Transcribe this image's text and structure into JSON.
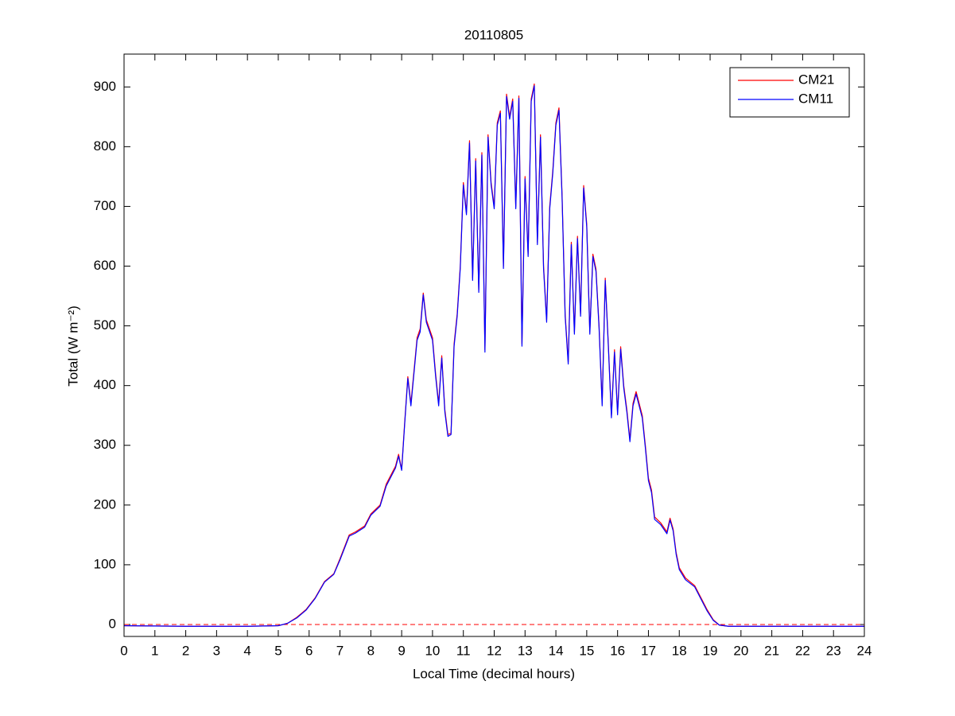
{
  "chart_data": {
    "type": "line",
    "title": "20110805",
    "xlabel": "Local Time (decimal hours)",
    "ylabel": "Total (W m⁻²)",
    "x": [
      0,
      2,
      4,
      5,
      5.3,
      5.6,
      5.9,
      6.2,
      6.5,
      6.8,
      7.0,
      7.3,
      7.5,
      7.8,
      8.0,
      8.3,
      8.5,
      8.8,
      8.9,
      9.0,
      9.1,
      9.2,
      9.3,
      9.5,
      9.6,
      9.7,
      9.8,
      10.0,
      10.1,
      10.2,
      10.3,
      10.4,
      10.5,
      10.6,
      10.7,
      10.8,
      10.9,
      11.0,
      11.1,
      11.2,
      11.3,
      11.4,
      11.5,
      11.6,
      11.7,
      11.8,
      11.9,
      12.0,
      12.1,
      12.2,
      12.3,
      12.4,
      12.5,
      12.6,
      12.7,
      12.8,
      12.9,
      13.0,
      13.1,
      13.2,
      13.3,
      13.4,
      13.5,
      13.6,
      13.7,
      13.8,
      13.9,
      14.0,
      14.1,
      14.2,
      14.3,
      14.4,
      14.5,
      14.6,
      14.7,
      14.8,
      14.9,
      15.0,
      15.1,
      15.2,
      15.3,
      15.4,
      15.5,
      15.6,
      15.7,
      15.8,
      15.9,
      16.0,
      16.1,
      16.2,
      16.3,
      16.4,
      16.5,
      16.6,
      16.7,
      16.8,
      16.9,
      17.0,
      17.1,
      17.2,
      17.4,
      17.6,
      17.7,
      17.8,
      17.9,
      18.0,
      18.2,
      18.5,
      18.7,
      18.9,
      19.1,
      19.3,
      19.6,
      21,
      24
    ],
    "series": [
      {
        "name": "CM21",
        "color": "#ff0000",
        "values": [
          -2,
          -3,
          -3,
          -2,
          2,
          12,
          25,
          45,
          72,
          85,
          110,
          150,
          155,
          165,
          185,
          200,
          235,
          265,
          285,
          260,
          340,
          415,
          370,
          480,
          495,
          555,
          510,
          480,
          420,
          370,
          450,
          360,
          318,
          320,
          470,
          520,
          600,
          740,
          690,
          810,
          580,
          780,
          560,
          790,
          460,
          820,
          740,
          700,
          840,
          860,
          600,
          888,
          850,
          880,
          700,
          885,
          470,
          750,
          620,
          880,
          905,
          640,
          820,
          600,
          510,
          700,
          760,
          840,
          865,
          720,
          520,
          440,
          640,
          490,
          650,
          520,
          735,
          670,
          490,
          620,
          595,
          500,
          370,
          580,
          470,
          350,
          460,
          355,
          465,
          400,
          360,
          310,
          370,
          390,
          370,
          350,
          300,
          245,
          225,
          180,
          170,
          155,
          178,
          160,
          120,
          95,
          78,
          65,
          45,
          25,
          8,
          -1,
          -3,
          -3,
          -3
        ]
      },
      {
        "name": "CM11",
        "color": "#0000ff",
        "values": [
          -2,
          -3,
          -3,
          -2,
          2,
          11,
          24,
          44,
          71,
          84,
          108,
          148,
          153,
          163,
          183,
          198,
          232,
          262,
          282,
          258,
          337,
          412,
          366,
          476,
          490,
          552,
          506,
          476,
          416,
          366,
          446,
          356,
          315,
          318,
          466,
          516,
          596,
          736,
          686,
          806,
          576,
          776,
          556,
          786,
          456,
          816,
          736,
          696,
          836,
          856,
          596,
          884,
          846,
          876,
          696,
          881,
          466,
          746,
          616,
          876,
          902,
          636,
          816,
          596,
          506,
          696,
          756,
          836,
          861,
          716,
          516,
          436,
          636,
          486,
          646,
          516,
          731,
          666,
          486,
          616,
          591,
          496,
          366,
          576,
          466,
          346,
          456,
          351,
          461,
          396,
          356,
          306,
          366,
          386,
          366,
          346,
          296,
          241,
          221,
          176,
          167,
          152,
          175,
          157,
          117,
          92,
          75,
          63,
          43,
          23,
          7,
          -1,
          -3,
          -3,
          -3
        ]
      }
    ],
    "reference_line": {
      "value": 0,
      "color": "#ff0000",
      "dashed": true
    },
    "xlim": [
      0,
      24
    ],
    "xticks": [
      0,
      1,
      2,
      3,
      4,
      5,
      6,
      7,
      8,
      9,
      10,
      11,
      12,
      13,
      14,
      15,
      16,
      17,
      18,
      19,
      20,
      21,
      22,
      23,
      24
    ],
    "ylim": [
      -20,
      955
    ],
    "yticks": [
      0,
      100,
      200,
      300,
      400,
      500,
      600,
      700,
      800,
      900
    ],
    "legend": "top-right",
    "grid": false
  }
}
